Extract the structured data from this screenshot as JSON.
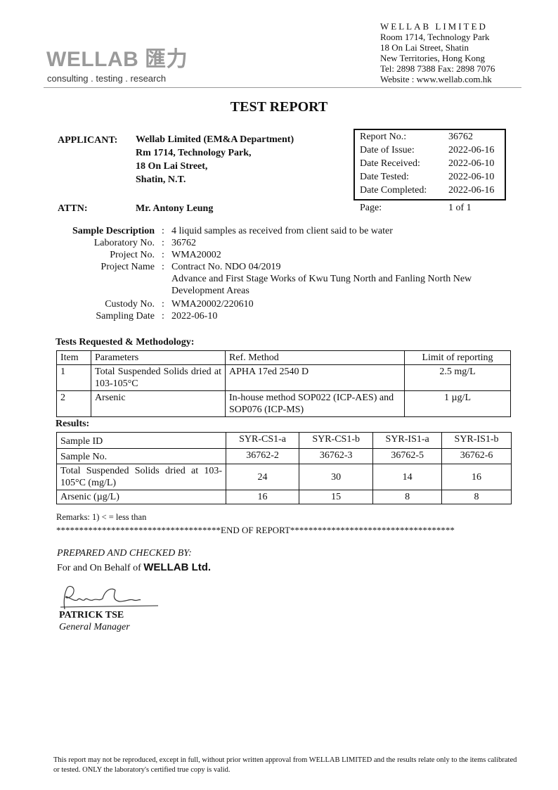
{
  "letterhead": {
    "logo_text": "WELLAB 匯力",
    "tagline": "consulting . testing . research",
    "company": "WELLAB LIMITED",
    "address": [
      "Room 1714, Technology Park",
      "18 On Lai Street, Shatin",
      "New Territories, Hong Kong",
      "Tel: 2898 7388 Fax: 2898 7076",
      "Website : www.wellab.com.hk"
    ]
  },
  "title": "TEST REPORT",
  "applicant": {
    "label": "APPLICANT:",
    "lines": [
      "Wellab Limited (EM&A Department)",
      "Rm 1714, Technology Park,",
      "18 On Lai Street,",
      "Shatin, N.T."
    ]
  },
  "attn": {
    "label": "ATTN:",
    "value": "Mr. Antony Leung"
  },
  "report_box": [
    {
      "k": "Report No.:",
      "v": "36762"
    },
    {
      "k": "Date of Issue:",
      "v": "2022-06-16"
    },
    {
      "k": "Date Received:",
      "v": "2022-06-10"
    },
    {
      "k": "Date Tested:",
      "v": "2022-06-10"
    },
    {
      "k": "Date Completed:",
      "v": "2022-06-16"
    }
  ],
  "page": {
    "k": "Page:",
    "v": "1 of 1"
  },
  "sample": [
    {
      "k": "Sample Description",
      "v": "4 liquid samples as received from client said to be water"
    },
    {
      "k": "Laboratory No.",
      "v": "36762"
    },
    {
      "k": "Project No.",
      "v": "WMA20002"
    },
    {
      "k": "Project Name",
      "v": "Contract No. NDO 04/2019",
      "extra": "Advance and First Stage Works of Kwu Tung North and Fanling North New Development Areas"
    },
    {
      "k": "Custody No.",
      "v": "WMA20002/220610"
    },
    {
      "k": "Sampling Date",
      "v": "2022-06-10"
    }
  ],
  "colon": ":",
  "tests": {
    "heading": "Tests Requested & Methodology:",
    "headers": [
      "Item",
      "Parameters",
      "Ref. Method",
      "Limit of reporting"
    ],
    "rows": [
      [
        "1",
        "Total Suspended Solids dried at 103-105°C",
        "APHA 17ed 2540 D",
        "2.5 mg/L"
      ],
      [
        "2",
        "Arsenic",
        "In-house method SOP022 (ICP-AES) and SOP076 (ICP-MS)",
        "1 µg/L"
      ]
    ]
  },
  "results": {
    "heading": "Results:",
    "rows": [
      [
        "Sample ID",
        "SYR-CS1-a",
        "SYR-CS1-b",
        "SYR-IS1-a",
        "SYR-IS1-b"
      ],
      [
        "Sample No.",
        "36762-2",
        "36762-3",
        "36762-5",
        "36762-6"
      ],
      [
        "Total Suspended Solids dried at 103-105°C (mg/L)",
        "24",
        "30",
        "14",
        "16"
      ],
      [
        "Arsenic (µg/L)",
        "16",
        "15",
        "8",
        "8"
      ]
    ]
  },
  "remarks": "Remarks:  1) < = less than",
  "end": "************************************END OF REPORT************************************",
  "prepared": "PREPARED AND CHECKED BY:",
  "behalf": "For and On Behalf of",
  "behalf_company": "WELLAB Ltd.",
  "signer": "PATRICK TSE",
  "signer_title": "General Manager",
  "footer": "This report may not be reproduced, except in full, without prior written approval from WELLAB LIMITED and the results relate only to the items calibrated or tested. ONLY the laboratory's certified true copy is valid."
}
